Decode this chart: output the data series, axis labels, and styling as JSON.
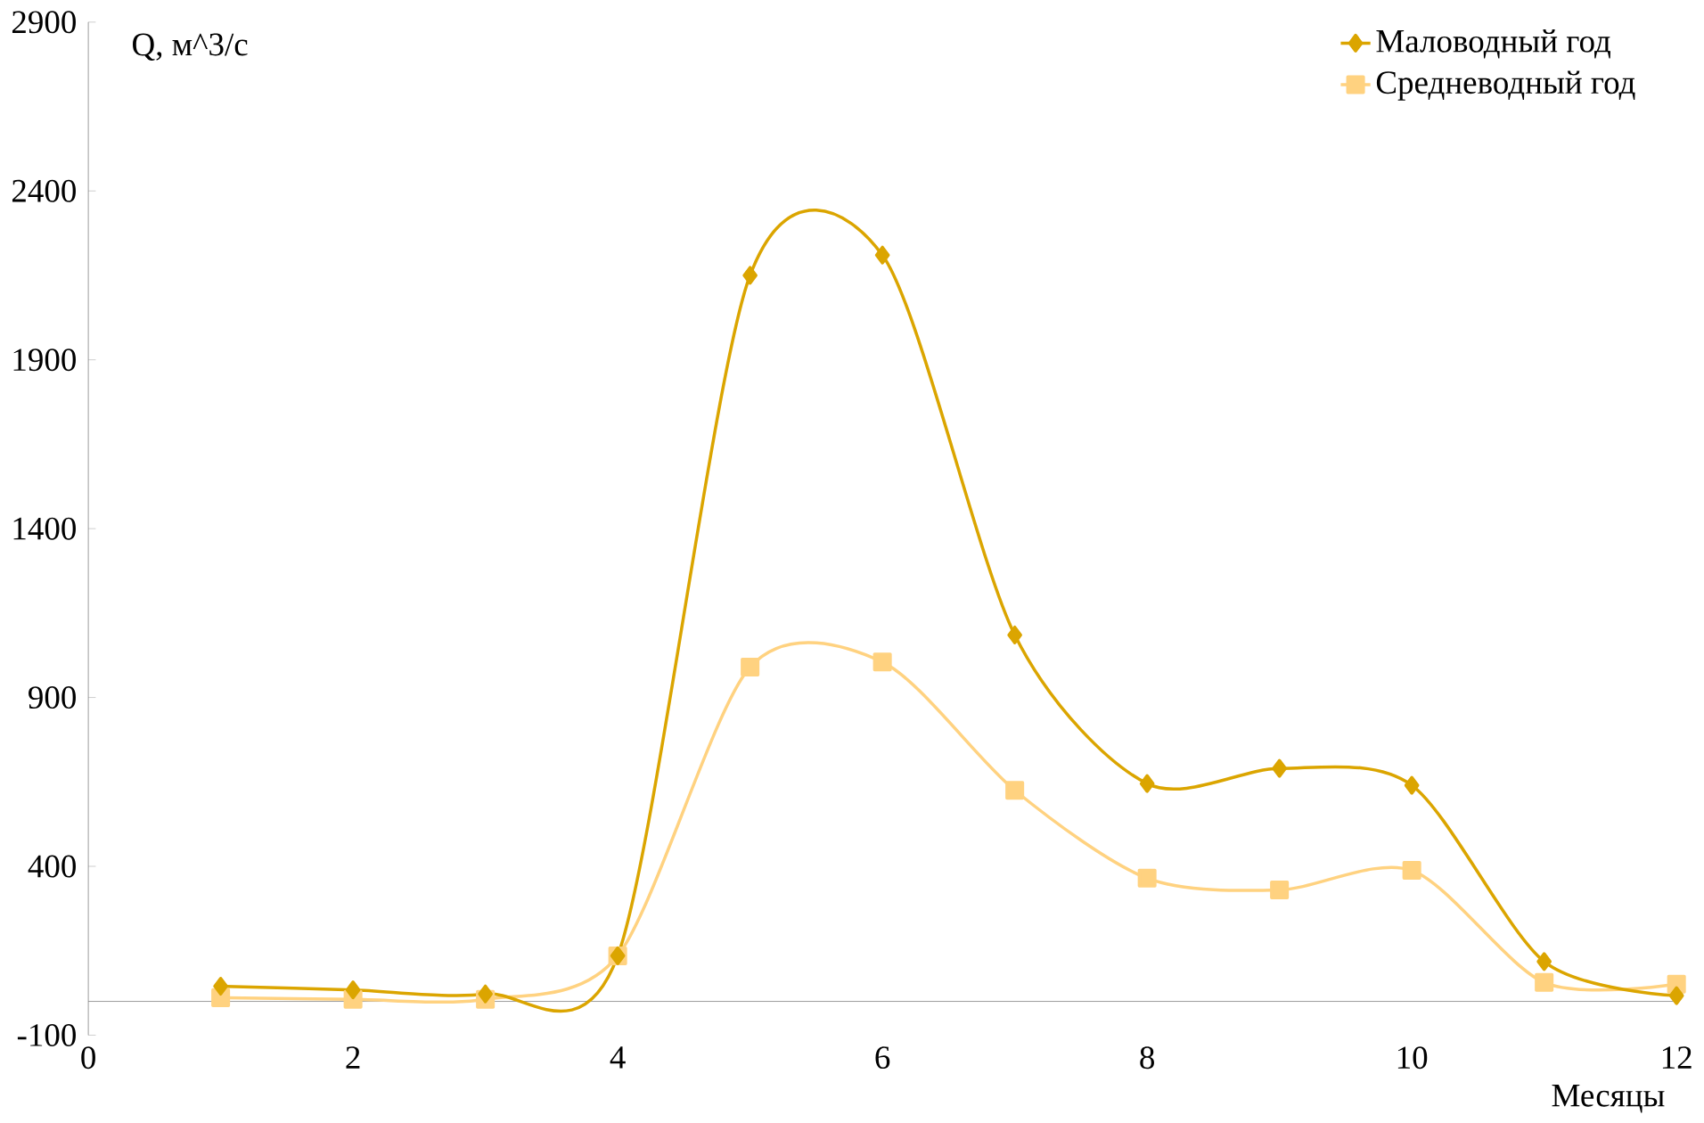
{
  "chart_data": {
    "type": "line",
    "xlabel": "Месяцы",
    "ylabel": "Q, м^3/с",
    "x": [
      1,
      2,
      3,
      4,
      5,
      6,
      7,
      8,
      9,
      10,
      11,
      12
    ],
    "series": [
      {
        "name": "Маловодный год",
        "color": "#dba500",
        "marker": "diamond",
        "values": [
          45,
          34,
          22,
          135,
          2150,
          2210,
          1085,
          645,
          690,
          640,
          118,
          17
        ]
      },
      {
        "name": "Средневодный год",
        "color": "#ffd280",
        "marker": "square",
        "values": [
          11,
          6,
          6,
          135,
          990,
          1005,
          625,
          365,
          330,
          388,
          56,
          51
        ]
      }
    ],
    "xlim": [
      0,
      12
    ],
    "xticks": [
      0,
      2,
      4,
      6,
      8,
      10,
      12
    ],
    "ylim": [
      -100,
      2900
    ],
    "yticks": [
      -100,
      400,
      900,
      1400,
      1900,
      2400,
      2900
    ],
    "grid": false,
    "legend": "top right",
    "line_style": "solid"
  }
}
